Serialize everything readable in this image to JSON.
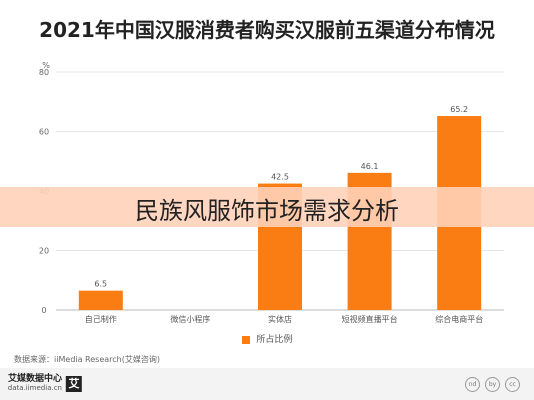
{
  "title": "2021年中国汉服消费者购买汉服前五渠道分布情况",
  "chart_data": {
    "type": "bar",
    "categories": [
      "综合电商平台",
      "短视频直播平台",
      "实体店",
      "微信小程序",
      "自己制作"
    ],
    "values": [
      65.2,
      46.1,
      42.5,
      null,
      6.5
    ],
    "value_labels": [
      "65.2",
      "46.1",
      "42.5",
      "",
      "6.5"
    ],
    "series": [
      {
        "name": "所占比例",
        "values": [
          65.2,
          46.1,
          42.5,
          null,
          6.5
        ]
      }
    ],
    "yunit": "%",
    "yticks": [
      0,
      20,
      40,
      60,
      80
    ],
    "ylim": [
      0,
      80
    ],
    "grid": true,
    "legend": "bottom",
    "bar_color": "#f97d13"
  },
  "source": "数据来源：iiMedia Research(艾媒咨询)",
  "footer": {
    "brand": "艾媒数据中心",
    "url": "data.iimedia.cn",
    "mark": "艾",
    "badges": [
      "cc",
      "by",
      "nd"
    ]
  },
  "watermark": "民族风服饰市场需求分析"
}
